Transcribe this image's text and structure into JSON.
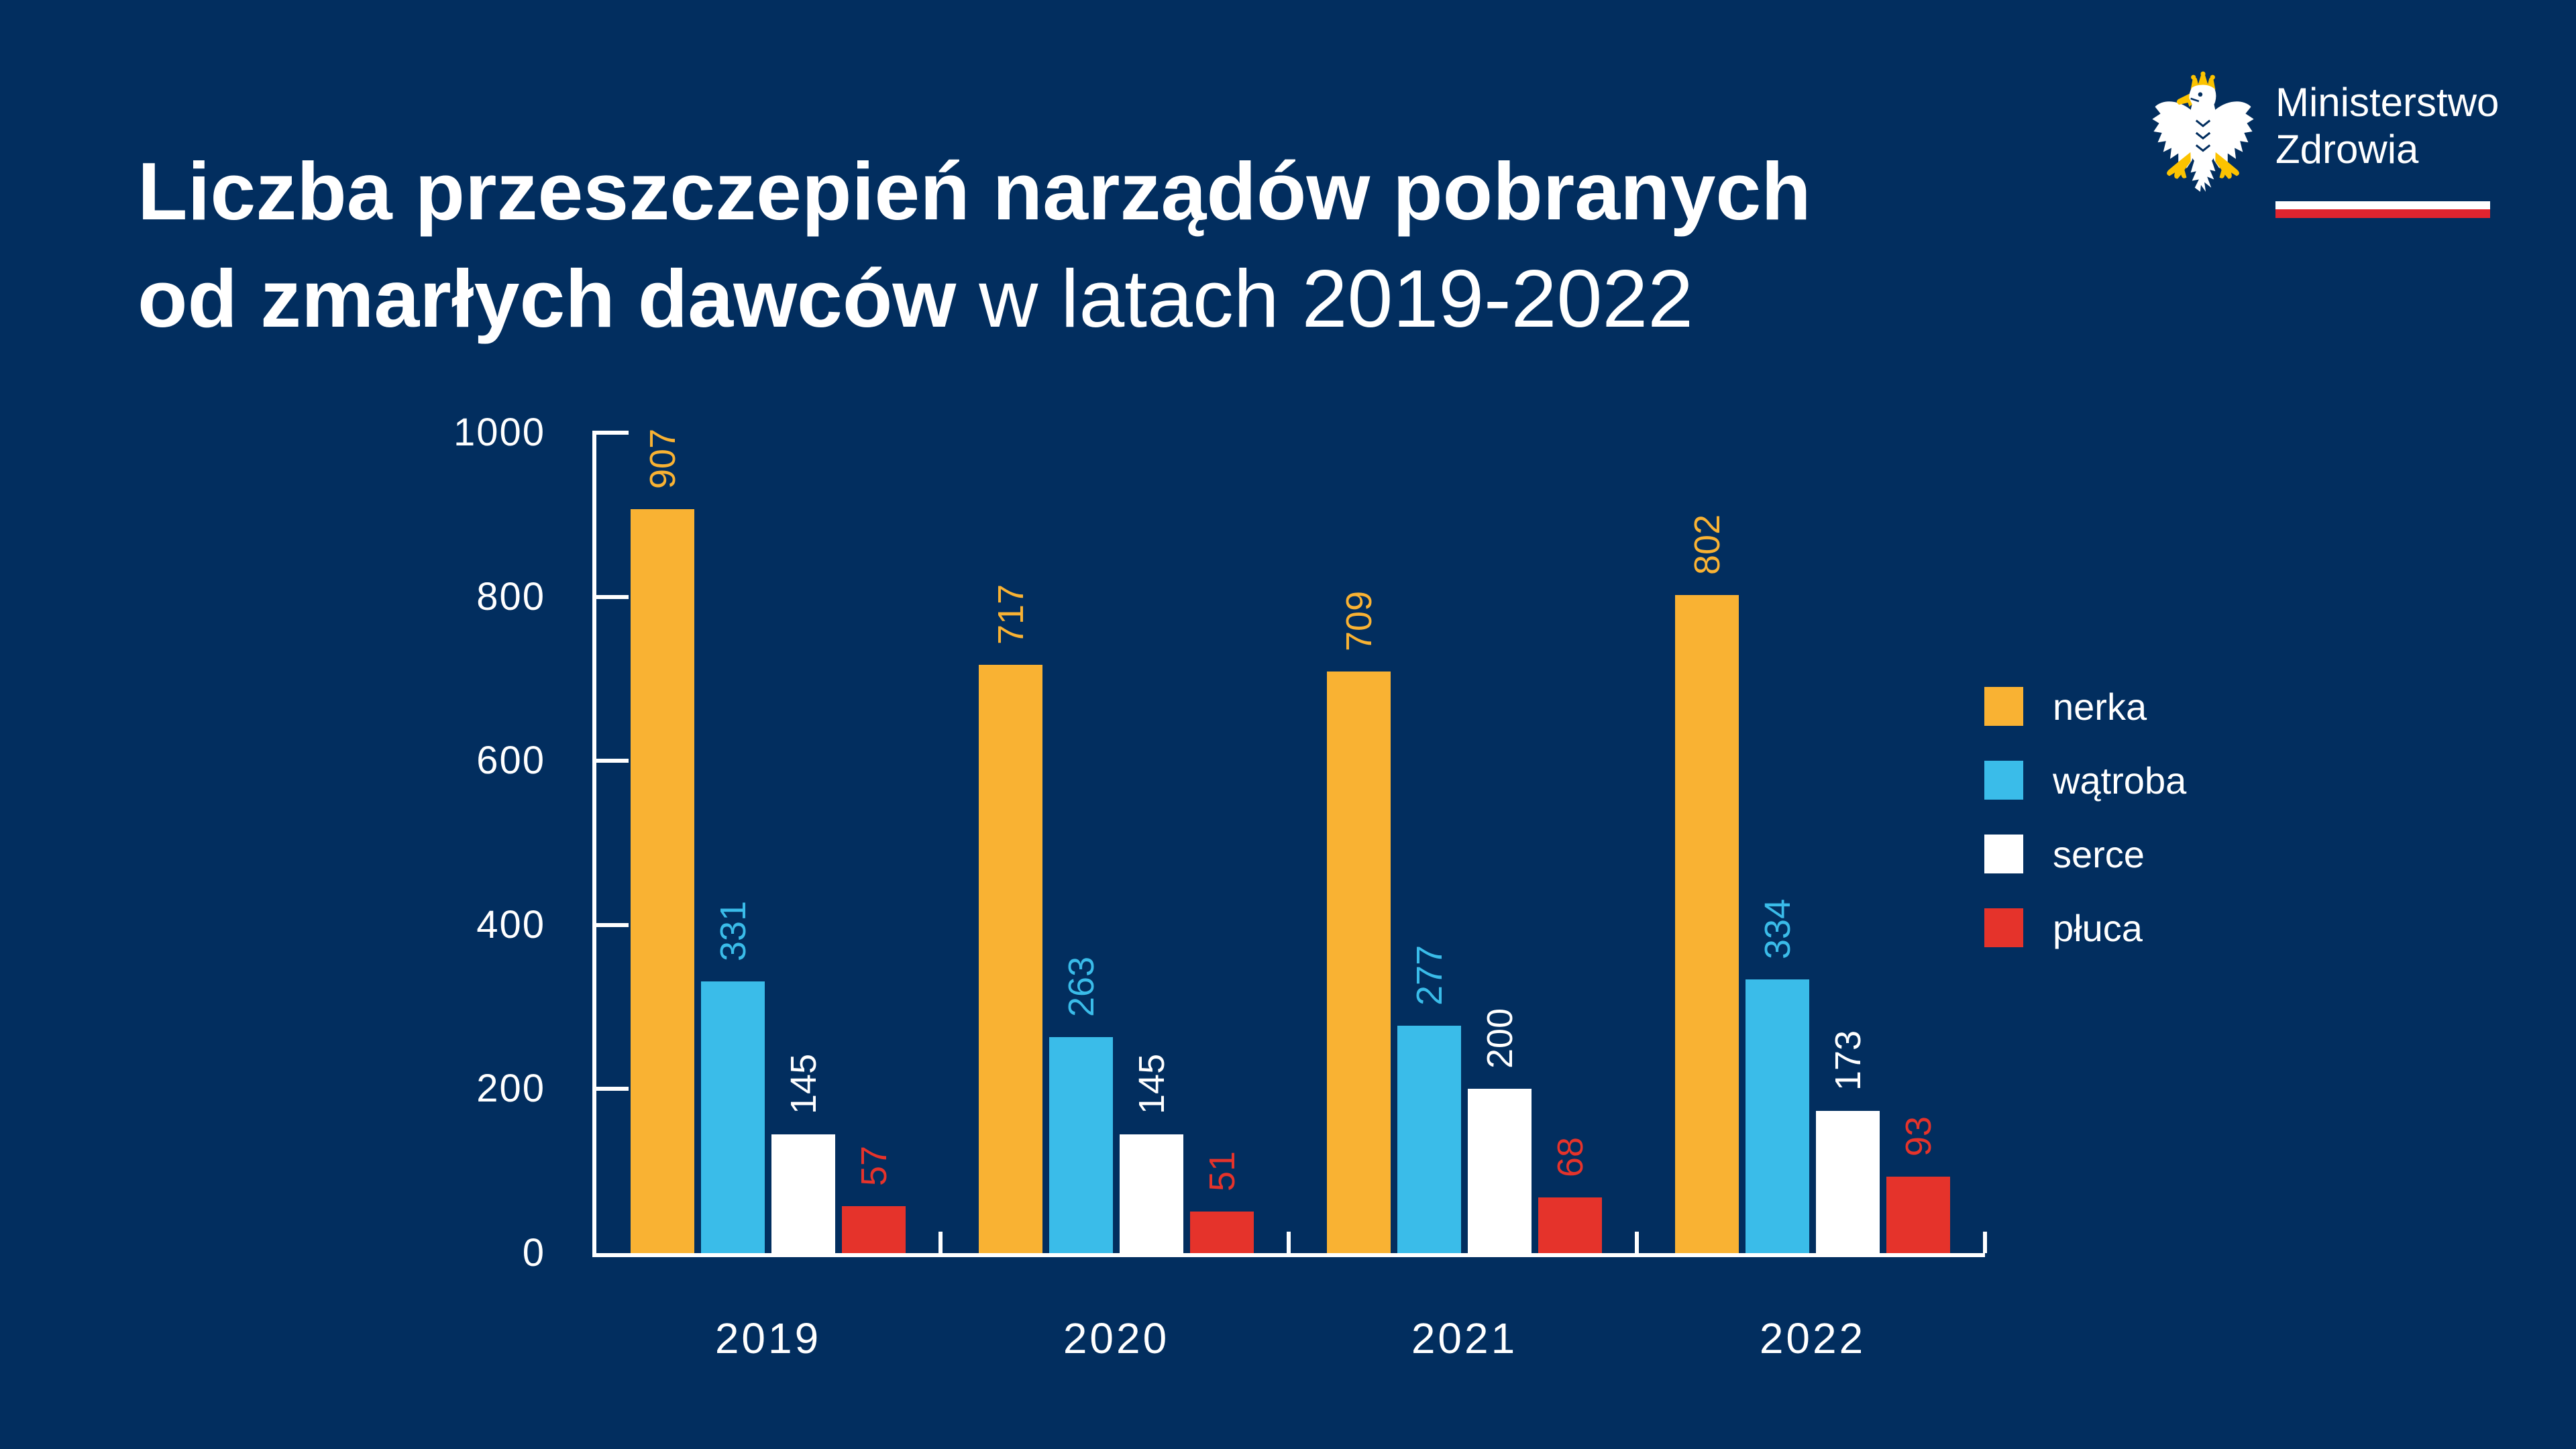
{
  "page": {
    "background_color": "#022E5F"
  },
  "header": {
    "title_line1_bold": "Liczba przeszczepień narządów pobranych",
    "title_line2_bold": "od zmarłych dawców",
    "title_line2_light": " w latach 2019-2022"
  },
  "logo": {
    "org_line1": "Ministerstwo",
    "org_line2": "Zdrowia",
    "eagle_icon": "polish-white-eagle",
    "flag_white": "#FFFFFF",
    "flag_red": "#E1242F",
    "eagle_gold": "#FCC300"
  },
  "chart_data": {
    "type": "bar",
    "categories": [
      "2019",
      "2020",
      "2021",
      "2022"
    ],
    "series": [
      {
        "name": "nerka",
        "color": "#F9B233",
        "values": [
          907,
          717,
          709,
          802
        ]
      },
      {
        "name": "wątroba",
        "color": "#3ABCE9",
        "values": [
          331,
          263,
          277,
          334
        ]
      },
      {
        "name": "serce",
        "color": "#FFFFFF",
        "values": [
          145,
          145,
          200,
          173
        ]
      },
      {
        "name": "płuca",
        "color": "#E5332B",
        "values": [
          57,
          51,
          68,
          93
        ]
      }
    ],
    "ylim": [
      0,
      1000
    ],
    "yticks": [
      0,
      200,
      400,
      600,
      800,
      1000
    ],
    "grid": false,
    "legend_position": "right",
    "value_labels": "rotated-90-above-bars",
    "axis_color": "#FFFFFF"
  }
}
